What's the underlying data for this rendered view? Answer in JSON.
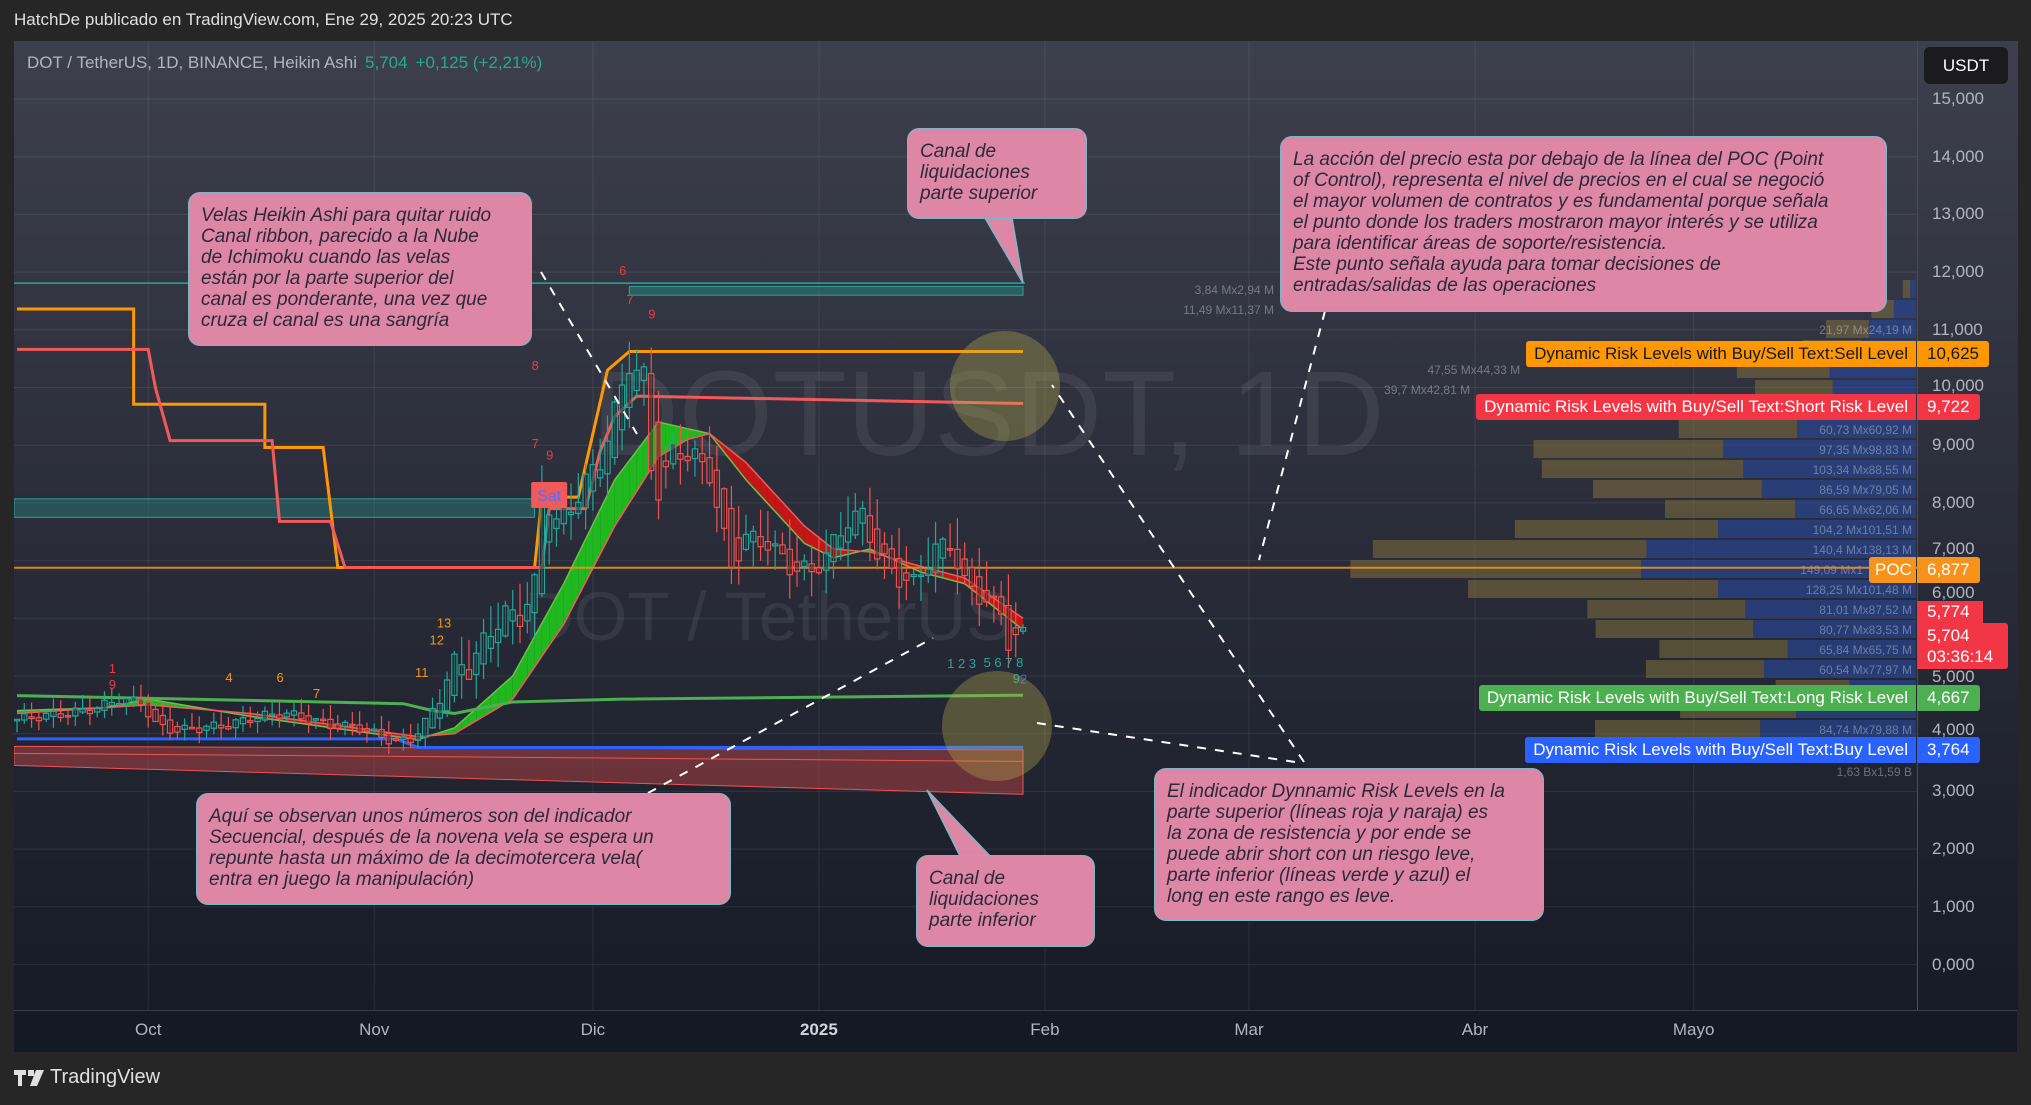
{
  "header": {
    "published": "HatchDe publicado en TradingView.com, Ene 29, 2025 20:23 UTC"
  },
  "legend": {
    "symbol": "DOT / TetherUS, 1D, BINANCE, Heikin Ashi",
    "price": "5,704",
    "change": "+0,125 (+2,21%)"
  },
  "watermark": {
    "main": "DOTUSDT, 1D",
    "sub": "DOT / TetherUS"
  },
  "currency_button": "USDT",
  "price_axis": [
    "15,000",
    "14,000",
    "13,000",
    "12,000",
    "11,000",
    "10,000",
    "9,000",
    "8,000",
    "7,000",
    "6,000",
    "5,000",
    "4,000",
    "3,000",
    "2,000",
    "1,000",
    "0,000"
  ],
  "time_axis": [
    {
      "label": "Oct",
      "date": "2024-10-01"
    },
    {
      "label": "Nov",
      "date": "2024-11-01"
    },
    {
      "label": "Dic",
      "date": "2024-12-01"
    },
    {
      "label": "2025",
      "date": "2025-01-01",
      "bold": true
    },
    {
      "label": "Feb",
      "date": "2025-02-01"
    },
    {
      "label": "Mar",
      "date": "2025-03-01"
    },
    {
      "label": "Abr",
      "date": "2025-04-01"
    },
    {
      "label": "Mayo",
      "date": "2025-05-01"
    }
  ],
  "colors": {
    "up": "#26a69a",
    "down": "#ef5350",
    "sell": "#ff9800",
    "short": "#f23645",
    "long": "#4caf50",
    "buy": "#2962ff",
    "poc": "#f7931a",
    "ribbon_up": "#1fb81f",
    "ribbon_down": "#c31616",
    "note_bg": "#de86a6"
  },
  "risk_levels": [
    {
      "name": "Dynamic Risk Levels with Buy/Sell Text:Sell Level",
      "value": "10,625",
      "price": 10.625,
      "color": "#ff9800",
      "text_color": "#131722"
    },
    {
      "name": "Dynamic Risk Levels with Buy/Sell Text:Short Risk Level",
      "value": "9,722",
      "price": 9.722,
      "color": "#f23645",
      "text_color": "#ffffff"
    },
    {
      "name": "Dynamic Risk Levels with Buy/Sell Text:Long Risk Level",
      "value": "4,667",
      "price": 4.667,
      "color": "#4caf50",
      "text_color": "#ffffff"
    },
    {
      "name": "Dynamic Risk Levels with Buy/Sell Text:Buy Level",
      "value": "3,764",
      "price": 3.764,
      "color": "#2962ff",
      "text_color": "#ffffff"
    }
  ],
  "poc": {
    "label": "POC",
    "value": "6,877",
    "price": 6.877
  },
  "price_tags": {
    "ribbon": "5,774",
    "last": "5,704",
    "countdown": "03:36:14"
  },
  "volume_profile": {
    "total": "1,63 Bx1,59 B",
    "rows": [
      {
        "buy": 3.84,
        "sell": 2.94,
        "label": "3,84 Mx2,94 M"
      },
      {
        "buy": 11.49,
        "sell": 11.37,
        "label": "11,49 Mx11,37 M"
      },
      {
        "buy": 21.97,
        "sell": 24.19,
        "label": "21,97 Mx24,19 M"
      },
      {
        "buy": 30,
        "sell": 28,
        "label": ""
      },
      {
        "buy": 47.55,
        "sell": 44.33,
        "label": "47,55 Mx44,33 M"
      },
      {
        "buy": 39.7,
        "sell": 42.81,
        "label": "39,7 Mx42,81 M"
      },
      {
        "buy": 45,
        "sell": 46,
        "label": ""
      },
      {
        "buy": 60.73,
        "sell": 60.92,
        "label": "60,73 Mx60,92 M"
      },
      {
        "buy": 97.35,
        "sell": 98.83,
        "label": "97,35 Mx98,83 M"
      },
      {
        "buy": 103.34,
        "sell": 88.55,
        "label": "103,34 Mx88,55 M"
      },
      {
        "buy": 86.59,
        "sell": 79.05,
        "label": "86,59 Mx79,05 M"
      },
      {
        "buy": 66.65,
        "sell": 62.06,
        "label": "66,65 Mx62,06 M"
      },
      {
        "buy": 104.2,
        "sell": 101.51,
        "label": "104,2 Mx101,51 M"
      },
      {
        "buy": 140.4,
        "sell": 138.13,
        "label": "140,4 Mx138,13 M"
      },
      {
        "buy": 149.09,
        "sell": 141,
        "label": "149,09 Mx1"
      },
      {
        "buy": 128.25,
        "sell": 101.48,
        "label": "128,25 Mx101,48 M"
      },
      {
        "buy": 81.01,
        "sell": 87.52,
        "label": "81,01 Mx87,52 M"
      },
      {
        "buy": 80.77,
        "sell": 83.53,
        "label": "80,77 Mx83,53 M"
      },
      {
        "buy": 65.84,
        "sell": 65.75,
        "label": "65,84 Mx65,75 M"
      },
      {
        "buy": 60.54,
        "sell": 77.97,
        "label": "60,54 Mx77,97 M"
      },
      {
        "buy": 38,
        "sell": 34,
        "label": ""
      },
      {
        "buy": 59.5,
        "sell": 61.5,
        "label": ""
      },
      {
        "buy": 84.74,
        "sell": 79.88,
        "label": "84,74 Mx79,88 M"
      },
      {
        "buy": 10,
        "sell": 8,
        "label": ""
      }
    ]
  },
  "notes": [
    {
      "id": "heikin",
      "text": "Velas Heikin Ashi para quitar ruido\nCanal ribbon, parecido a la Nube\nde Ichimoku cuando las velas\nestán por la parte superior del\ncanal es ponderante, una vez que\ncruza el canal es una sangría"
    },
    {
      "id": "liq-top",
      "text": "Canal de\nliquidaciones\nparte superior"
    },
    {
      "id": "poc",
      "text": "La acción del precio esta por debajo de la línea del POC  (Point\nof Control), representa el nivel de precios en el cual se negoció\nel mayor volumen de contratos y es fundamental porque señala\nel punto donde los traders mostraron mayor interés y se utiliza\npara identificar áreas de soporte/resistencia.\nEste punto señala ayuda para tomar decisiones de\nentradas/salidas de las operaciones"
    },
    {
      "id": "secuencial",
      "text": "Aquí se observan unos números son del indicador\nSecuencial,  después  de la novena vela se espera un\nrepunte hasta un máximo de la decimotercera vela(\nentra en juego la manipulación)"
    },
    {
      "id": "liq-bottom",
      "text": "Canal de\nliquidaciones\nparte inferior"
    },
    {
      "id": "risk",
      "text": "El indicador Dynnamic Risk Levels en la\nparte superior (líneas roja y naraja) es\nla zona de resistencia y por ende se\npuede abrir short con un riesgo leve,\nparte inferior (líneas verde y azul) el\nlong en este rango es leve."
    }
  ],
  "chart_data": {
    "type": "candlestick",
    "candle_style": "Heikin Ashi",
    "ylim": [
      0,
      15
    ],
    "xlim": [
      "2024-09-12",
      "2025-05-31"
    ],
    "grid": true,
    "closes": [
      [
        "2024-09-13",
        4.25
      ],
      [
        "2024-09-16",
        4.3
      ],
      [
        "2024-09-20",
        4.35
      ],
      [
        "2024-09-24",
        4.45
      ],
      [
        "2024-09-27",
        4.6
      ],
      [
        "2024-09-30",
        4.55
      ],
      [
        "2024-10-02",
        4.15
      ],
      [
        "2024-10-05",
        4.05
      ],
      [
        "2024-10-08",
        4.1
      ],
      [
        "2024-10-12",
        4.15
      ],
      [
        "2024-10-16",
        4.3
      ],
      [
        "2024-10-20",
        4.35
      ],
      [
        "2024-10-23",
        4.25
      ],
      [
        "2024-10-26",
        4.15
      ],
      [
        "2024-10-30",
        4.1
      ],
      [
        "2024-11-04",
        3.85
      ],
      [
        "2024-11-06",
        3.9
      ],
      [
        "2024-11-08",
        4.2
      ],
      [
        "2024-11-10",
        4.6
      ],
      [
        "2024-11-12",
        5.3
      ],
      [
        "2024-11-14",
        5.1
      ],
      [
        "2024-11-16",
        5.6
      ],
      [
        "2024-11-19",
        6.1
      ],
      [
        "2024-11-21",
        6.0
      ],
      [
        "2024-11-23",
        6.6
      ],
      [
        "2024-11-24",
        8.2
      ],
      [
        "2024-11-26",
        7.7
      ],
      [
        "2024-11-28",
        7.9
      ],
      [
        "2024-11-30",
        8.4
      ],
      [
        "2024-12-02",
        8.7
      ],
      [
        "2024-12-04",
        9.6
      ],
      [
        "2024-12-06",
        10.4
      ],
      [
        "2024-12-08",
        10.2
      ],
      [
        "2024-12-09",
        8.6
      ],
      [
        "2024-12-10",
        8.2
      ],
      [
        "2024-12-12",
        8.9
      ],
      [
        "2024-12-15",
        8.8
      ],
      [
        "2024-12-17",
        8.5
      ],
      [
        "2024-12-19",
        7.4
      ],
      [
        "2024-12-20",
        6.9
      ],
      [
        "2024-12-22",
        7.4
      ],
      [
        "2024-12-25",
        7.3
      ],
      [
        "2024-12-28",
        6.9
      ],
      [
        "2024-12-31",
        6.8
      ],
      [
        "2025-01-02",
        7.1
      ],
      [
        "2025-01-05",
        7.7
      ],
      [
        "2025-01-07",
        7.8
      ],
      [
        "2025-01-09",
        7.1
      ],
      [
        "2025-01-12",
        6.7
      ],
      [
        "2025-01-14",
        6.6
      ],
      [
        "2025-01-17",
        7.2
      ],
      [
        "2025-01-19",
        7.3
      ],
      [
        "2025-01-21",
        6.6
      ],
      [
        "2025-01-24",
        6.3
      ],
      [
        "2025-01-26",
        6.1
      ],
      [
        "2025-01-27",
        5.6
      ],
      [
        "2025-01-29",
        5.704
      ]
    ],
    "lines": {
      "sell": [
        [
          "2024-09-13",
          11.36
        ],
        [
          "2024-09-29",
          11.36
        ],
        [
          "2024-09-29",
          9.71
        ],
        [
          "2024-10-17",
          9.71
        ],
        [
          "2024-10-17",
          8.96
        ],
        [
          "2024-10-25",
          8.96
        ],
        [
          "2024-10-27",
          6.88
        ],
        [
          "2024-11-23",
          6.88
        ],
        [
          "2024-11-24",
          8.1
        ],
        [
          "2024-11-29",
          8.1
        ],
        [
          "2024-12-01",
          9.2
        ],
        [
          "2024-12-03",
          10.3
        ],
        [
          "2024-12-06",
          10.625
        ],
        [
          "2025-01-29",
          10.625
        ]
      ],
      "short": [
        [
          "2024-09-13",
          10.66
        ],
        [
          "2024-10-01",
          10.66
        ],
        [
          "2024-10-02",
          9.99
        ],
        [
          "2024-10-04",
          9.08
        ],
        [
          "2024-10-18",
          9.08
        ],
        [
          "2024-10-19",
          7.68
        ],
        [
          "2024-10-26",
          7.68
        ],
        [
          "2024-10-28",
          6.88
        ],
        [
          "2024-11-24",
          6.88
        ],
        [
          "2024-11-25",
          7.9
        ],
        [
          "2024-11-30",
          7.9
        ],
        [
          "2024-12-02",
          8.9
        ],
        [
          "2024-12-04",
          9.5
        ],
        [
          "2024-12-07",
          9.85
        ],
        [
          "2025-01-29",
          9.722
        ]
      ],
      "long": [
        [
          "2024-09-13",
          4.66
        ],
        [
          "2024-10-25",
          4.55
        ],
        [
          "2024-11-05",
          4.52
        ],
        [
          "2024-11-09",
          4.4
        ],
        [
          "2024-11-12",
          4.35
        ],
        [
          "2024-11-20",
          4.55
        ],
        [
          "2024-12-05",
          4.6
        ],
        [
          "2025-01-29",
          4.667
        ]
      ],
      "buy": [
        [
          "2024-09-13",
          3.91
        ],
        [
          "2024-11-04",
          3.91
        ],
        [
          "2024-11-07",
          3.76
        ],
        [
          "2025-01-29",
          3.764
        ]
      ],
      "poc": 6.877
    },
    "ribbon": {
      "fast": [
        [
          "2024-09-13",
          4.4
        ],
        [
          "2024-09-25",
          4.45
        ],
        [
          "2024-10-01",
          4.6
        ],
        [
          "2024-10-15",
          4.3
        ],
        [
          "2024-11-01",
          4.0
        ],
        [
          "2024-11-07",
          3.9
        ],
        [
          "2024-11-12",
          4.1
        ],
        [
          "2024-11-20",
          5.0
        ],
        [
          "2024-11-27",
          6.6
        ],
        [
          "2024-12-04",
          8.4
        ],
        [
          "2024-12-10",
          9.4
        ],
        [
          "2024-12-17",
          9.2
        ],
        [
          "2024-12-22",
          8.4
        ],
        [
          "2024-12-30",
          7.3
        ],
        [
          "2025-01-03",
          7.05
        ],
        [
          "2025-01-08",
          7.2
        ],
        [
          "2025-01-15",
          6.8
        ],
        [
          "2025-01-21",
          6.6
        ],
        [
          "2025-01-29",
          5.8
        ]
      ],
      "slow": [
        [
          "2024-09-13",
          4.35
        ],
        [
          "2024-10-01",
          4.5
        ],
        [
          "2024-10-15",
          4.35
        ],
        [
          "2024-11-07",
          3.95
        ],
        [
          "2024-11-12",
          4.0
        ],
        [
          "2024-11-20",
          4.6
        ],
        [
          "2024-11-27",
          5.9
        ],
        [
          "2024-12-04",
          7.6
        ],
        [
          "2024-12-10",
          8.8
        ],
        [
          "2024-12-14",
          9.1
        ],
        [
          "2024-12-17",
          9.2
        ],
        [
          "2024-12-22",
          8.7
        ],
        [
          "2024-12-30",
          7.6
        ],
        [
          "2025-01-03",
          7.2
        ],
        [
          "2025-01-08",
          7.15
        ],
        [
          "2025-01-15",
          6.9
        ],
        [
          "2025-01-21",
          6.7
        ],
        [
          "2025-01-29",
          6.0
        ]
      ]
    },
    "liquidation_zones": {
      "upper_line": 11.81,
      "upper_band": {
        "from": "2024-12-06",
        "to": "2025-01-29",
        "top": 11.75,
        "bottom": 11.6
      },
      "left_band": {
        "from": "2024-09-13",
        "to": "2024-11-23",
        "top": 8.07,
        "bottom": 7.75
      },
      "lower_band": {
        "from": "2024-09-13",
        "to": "2025-01-29",
        "top": [
          3.78,
          3.72
        ],
        "bottom": [
          3.45,
          2.95
        ]
      }
    },
    "sequential_marks": [
      {
        "date": "2024-09-26",
        "price": 5.05,
        "text": "1",
        "color": "#f23645"
      },
      {
        "date": "2024-09-26",
        "price": 4.88,
        "text": "9",
        "color": "#f23645"
      },
      {
        "date": "2024-10-24",
        "price": 4.62,
        "text": "7",
        "color": "#f7931a"
      },
      {
        "date": "2024-10-12",
        "price": 4.9,
        "text": "4",
        "color": "#f7931a"
      },
      {
        "date": "2024-10-19",
        "price": 4.9,
        "text": "6",
        "color": "#f7931a"
      },
      {
        "date": "2024-11-07",
        "price": 4.98,
        "text": "11",
        "color": "#f7931a"
      },
      {
        "date": "2024-11-09",
        "price": 5.55,
        "text": "12",
        "color": "#f7931a"
      },
      {
        "date": "2024-11-10",
        "price": 5.84,
        "text": "13",
        "color": "#f7931a"
      },
      {
        "date": "2024-11-23",
        "price": 8.95,
        "text": "7",
        "color": "#f23645"
      },
      {
        "date": "2024-11-25",
        "price": 8.75,
        "text": "9",
        "color": "#f23645"
      },
      {
        "date": "2024-11-23",
        "price": 10.3,
        "text": "8",
        "color": "#f23645"
      },
      {
        "date": "2024-12-06",
        "price": 11.45,
        "text": "7",
        "color": "#f23645"
      },
      {
        "date": "2024-12-09",
        "price": 11.2,
        "text": "9",
        "color": "#f23645"
      },
      {
        "date": "2024-12-05",
        "price": 11.95,
        "text": "6",
        "color": "#f23645"
      },
      {
        "date": "2025-01-19",
        "price": 5.8,
        "text": "1 2 3",
        "color": "#26a69a"
      },
      {
        "date": "2025-01-24",
        "price": 5.85,
        "text": "5 6 7 8",
        "color": "#26a69a"
      },
      {
        "date": "2025-01-28",
        "price": 5.05,
        "text": "9",
        "color": "#26a69a"
      },
      {
        "date": "2025-01-29",
        "price": 5.15,
        "text": "2",
        "color": "#2962ff"
      }
    ],
    "signal_label": {
      "date": "2024-11-25",
      "price": 8.12,
      "text": "Sat"
    }
  }
}
